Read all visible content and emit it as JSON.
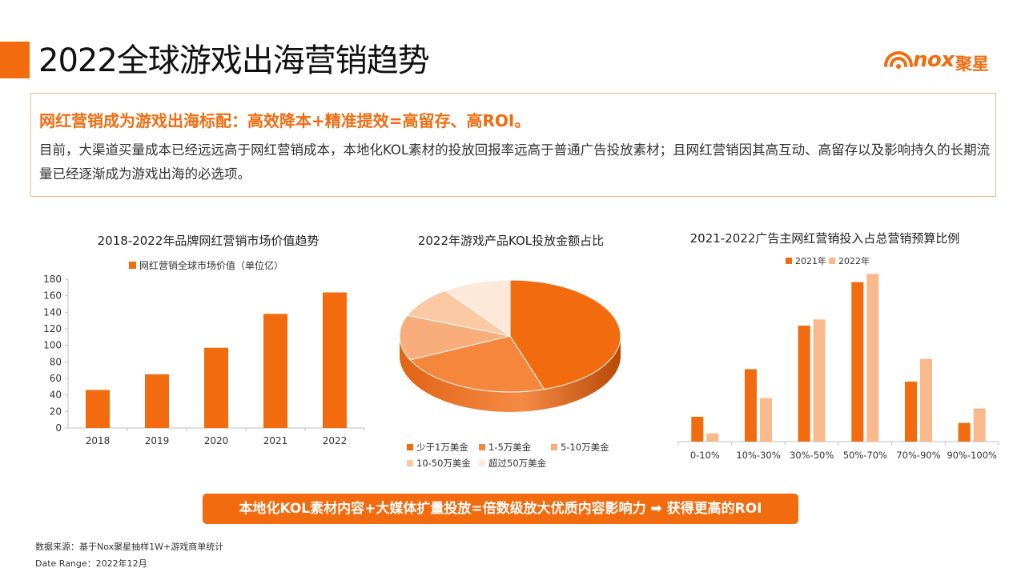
{
  "header": {
    "title": "2022全球游戏出海营销趋势",
    "logo_brand": "nox",
    "logo_cn": "聚星",
    "accent_color": "#f26b0f"
  },
  "summary": {
    "headline": "网红营销成为游戏出海标配：高效降本+精准提效=高留存、高ROI。",
    "body": "目前，大渠道买量成本已经远远高于网红营销成本，本地化KOL素材的投放回报率远高于普通广告投放素材；且网红营销因其高互动、高留存以及影响持久的长期流量已经逐渐成为游戏出海的必选项。"
  },
  "chart_data": [
    {
      "type": "bar",
      "title": "2018-2022年品牌网红营销市场价值趋势",
      "categories": [
        "2018",
        "2019",
        "2020",
        "2021",
        "2022"
      ],
      "series": [
        {
          "name": "网红营销全球市场价值（单位亿）",
          "values": [
            46,
            65,
            97,
            138,
            164
          ],
          "color": "#f26b0f"
        }
      ],
      "ylim": [
        0,
        180
      ],
      "yticks": [
        "0",
        "20",
        "40",
        "60",
        "80",
        "100",
        "120",
        "140",
        "160",
        "180"
      ],
      "legend": "top",
      "grid": false
    },
    {
      "type": "pie",
      "title": "2022年游戏产品KOL投放金额占比",
      "slices": [
        {
          "label": "少于1万美金",
          "value": 45,
          "color": "#f26b0f"
        },
        {
          "label": "1-5万美金",
          "value": 23,
          "color": "#f5873d"
        },
        {
          "label": "5-10万美金",
          "value": 13,
          "color": "#f8ad7a"
        },
        {
          "label": "10-50万美金",
          "value": 9,
          "color": "#fbc9a4"
        },
        {
          "label": "超过50万美金",
          "value": 10,
          "color": "#fde9d9"
        }
      ],
      "legend": "bottom"
    },
    {
      "type": "bar",
      "title": "2021-2022广告主网红营销投入占总营销预算比例",
      "categories": [
        "0-10%",
        "10%-30%",
        "30%-50%",
        "50%-70%",
        "70%-90%",
        "90%-100%"
      ],
      "series": [
        {
          "name": "2021年",
          "values": [
            12,
            35,
            56,
            77,
            29,
            9
          ],
          "color": "#f26b0f"
        },
        {
          "name": "2022年",
          "values": [
            4,
            21,
            59,
            81,
            40,
            16
          ],
          "color": "#f9b98c"
        }
      ],
      "ylim": [
        0,
        85
      ],
      "legend": "top",
      "grid": false
    }
  ],
  "cta": {
    "text": "本地化KOL素材内容+大媒体扩量投放=倍数级放大优质内容影响力 ➡ 获得更高的ROI"
  },
  "footer": {
    "source": "数据来源：基于Nox聚星抽样1W+游戏商单统计",
    "date_range": "Date Range：2022年12月"
  }
}
